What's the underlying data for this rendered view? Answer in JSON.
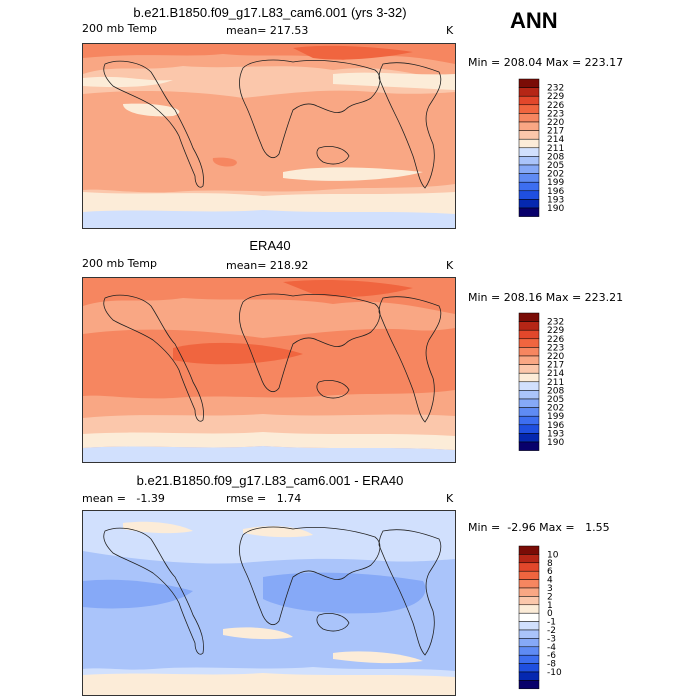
{
  "season": "ANN",
  "units": "K",
  "palette_temp": [
    "#08006b",
    "#0528b0",
    "#1f4fe0",
    "#3d6ef0",
    "#5f8bf4",
    "#86a9f7",
    "#aac4fa",
    "#d1e0fd",
    "#fcecd8",
    "#fbc7ab",
    "#f9a784",
    "#f68660",
    "#f0653f",
    "#e2472b",
    "#b52616",
    "#7a0c06"
  ],
  "palette_diff": [
    "#08006b",
    "#0528b0",
    "#1f4fe0",
    "#3d6ef0",
    "#5f8bf4",
    "#86a9f7",
    "#aac4fa",
    "#d1e0fd",
    "#ffffff",
    "#fcecd8",
    "#fbc7ab",
    "#f9a784",
    "#f68660",
    "#f0653f",
    "#e2472b",
    "#b52616",
    "#7a0c06"
  ],
  "chart_data": [
    {
      "type": "heatmap",
      "title": "b.e21.B1850.f09_g17.L83_cam6.001 (yrs 3-32)",
      "left_label": "200 mb Temp",
      "center_label": "mean= 217.53",
      "units": "K",
      "min_max": "Min = 208.04 Max = 223.17",
      "contour_levels": [
        "190",
        "193",
        "196",
        "199",
        "202",
        "205",
        "208",
        "211",
        "214",
        "217",
        "220",
        "223",
        "226",
        "229",
        "232"
      ],
      "mean": 217.53,
      "min": 208.04,
      "max": 223.17
    },
    {
      "type": "heatmap",
      "title": "ERA40",
      "left_label": "200 mb Temp",
      "center_label": "mean= 218.92",
      "units": "K",
      "min_max": "Min = 208.16 Max = 223.21",
      "contour_levels": [
        "190",
        "193",
        "196",
        "199",
        "202",
        "205",
        "208",
        "211",
        "214",
        "217",
        "220",
        "223",
        "226",
        "229",
        "232"
      ],
      "mean": 218.92,
      "min": 208.16,
      "max": 223.21
    },
    {
      "type": "heatmap",
      "title": "b.e21.B1850.f09_g17.L83_cam6.001 - ERA40",
      "left_label": "mean =   -1.39",
      "center_label": "rmse =   1.74",
      "units": "K",
      "min_max": "Min =  -2.96 Max =   1.55",
      "contour_levels": [
        "-10",
        "-8",
        "-6",
        "-4",
        "-3",
        "-2",
        "-1",
        "0",
        "1",
        "2",
        "3",
        "4",
        "6",
        "8",
        "10"
      ],
      "mean": -1.39,
      "rmse": 1.74,
      "min": -2.96,
      "max": 1.55
    }
  ]
}
